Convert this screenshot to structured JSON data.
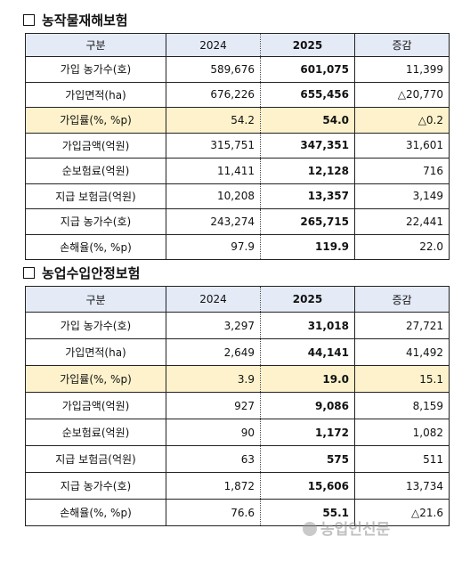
{
  "sections": [
    {
      "title": "농작물재해보험",
      "headers": [
        "구분",
        "2024",
        "2025",
        "증감"
      ],
      "rows": [
        {
          "label": "가입 농가수(호)",
          "v2024": "589,676",
          "v2025": "601,075",
          "change": "11,399",
          "highlight": false
        },
        {
          "label": "가입면적(ha)",
          "v2024": "676,226",
          "v2025": "655,456",
          "change": "△20,770",
          "highlight": false
        },
        {
          "label": "가입률(%, %p)",
          "v2024": "54.2",
          "v2025": "54.0",
          "change": "△0.2",
          "highlight": true
        },
        {
          "label": "가입금액(억원)",
          "v2024": "315,751",
          "v2025": "347,351",
          "change": "31,601",
          "highlight": false
        },
        {
          "label": "순보험료(억원)",
          "v2024": "11,411",
          "v2025": "12,128",
          "change": "716",
          "highlight": false
        },
        {
          "label": "지급 보험금(억원)",
          "v2024": "10,208",
          "v2025": "13,357",
          "change": "3,149",
          "highlight": false
        },
        {
          "label": "지급 농가수(호)",
          "v2024": "243,274",
          "v2025": "265,715",
          "change": "22,441",
          "highlight": false
        },
        {
          "label": "손해율(%, %p)",
          "v2024": "97.9",
          "v2025": "119.9",
          "change": "22.0",
          "highlight": false
        }
      ]
    },
    {
      "title": "농업수입안정보험",
      "headers": [
        "구분",
        "2024",
        "2025",
        "증감"
      ],
      "rows": [
        {
          "label": "가입 농가수(호)",
          "v2024": "3,297",
          "v2025": "31,018",
          "change": "27,721",
          "highlight": false
        },
        {
          "label": "가입면적(ha)",
          "v2024": "2,649",
          "v2025": "44,141",
          "change": "41,492",
          "highlight": false
        },
        {
          "label": "가입률(%, %p)",
          "v2024": "3.9",
          "v2025": "19.0",
          "change": "15.1",
          "highlight": true
        },
        {
          "label": "가입금액(억원)",
          "v2024": "927",
          "v2025": "9,086",
          "change": "8,159",
          "highlight": false
        },
        {
          "label": "순보험료(억원)",
          "v2024": "90",
          "v2025": "1,172",
          "change": "1,082",
          "highlight": false
        },
        {
          "label": "지급 보험금(억원)",
          "v2024": "63",
          "v2025": "575",
          "change": "511",
          "highlight": false
        },
        {
          "label": "지급 농가수(호)",
          "v2024": "1,872",
          "v2025": "15,606",
          "change": "13,734",
          "highlight": false
        },
        {
          "label": "손해율(%, %p)",
          "v2024": "76.6",
          "v2025": "55.1",
          "change": "△21.6",
          "highlight": false
        }
      ]
    }
  ],
  "watermark": "농업인신문"
}
